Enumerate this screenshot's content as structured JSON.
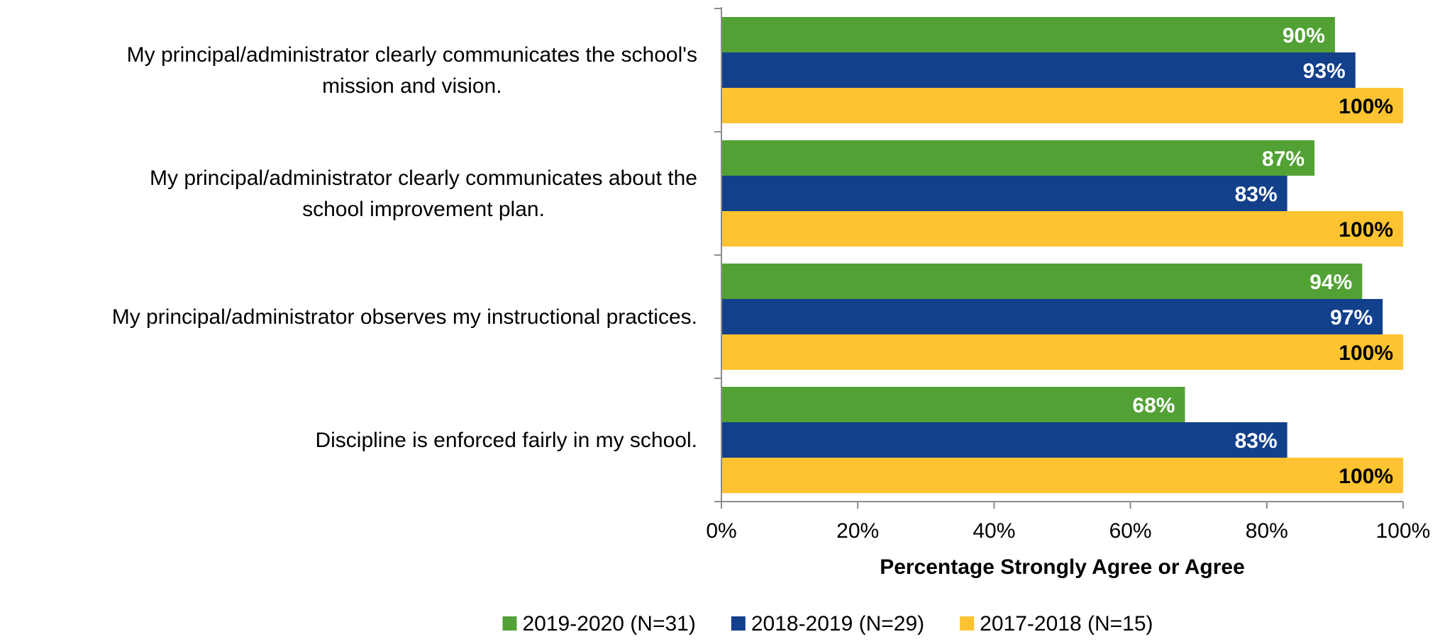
{
  "chart_data": {
    "type": "bar",
    "orientation": "horizontal",
    "categories": [
      [
        "My principal/administrator clearly communicates the school's",
        "mission and vision."
      ],
      [
        "My principal/administrator clearly communicates about the",
        "school improvement plan."
      ],
      [
        "My principal/administrator observes my instructional practices."
      ],
      [
        "Discipline is enforced fairly in my school."
      ]
    ],
    "series": [
      {
        "name": "2019-2020 (N=31)",
        "color": "#52a135",
        "label_color": "#ffffff",
        "values": [
          90,
          87,
          94,
          68
        ],
        "labels": [
          "90%",
          "87%",
          "94%",
          "68%"
        ]
      },
      {
        "name": "2018-2019 (N=29)",
        "color": "#13408b",
        "label_color": "#ffffff",
        "values": [
          93,
          83,
          97,
          83
        ],
        "labels": [
          "93%",
          "83%",
          "97%",
          "83%"
        ]
      },
      {
        "name": "2017-2018 (N=15)",
        "color": "#fdc331",
        "label_color": "#000000",
        "values": [
          100,
          100,
          100,
          100
        ],
        "labels": [
          "100%",
          "100%",
          "100%",
          "100%"
        ]
      }
    ],
    "xlabel": "Percentage Strongly Agree or Agree",
    "xlim": [
      0,
      100
    ],
    "xticks": [
      {
        "value": 0,
        "label": "0%"
      },
      {
        "value": 20,
        "label": "20%"
      },
      {
        "value": 40,
        "label": "40%"
      },
      {
        "value": 60,
        "label": "60%"
      },
      {
        "value": 80,
        "label": "80%"
      },
      {
        "value": 100,
        "label": "100%"
      }
    ],
    "grid": false,
    "legend_position": "bottom"
  }
}
